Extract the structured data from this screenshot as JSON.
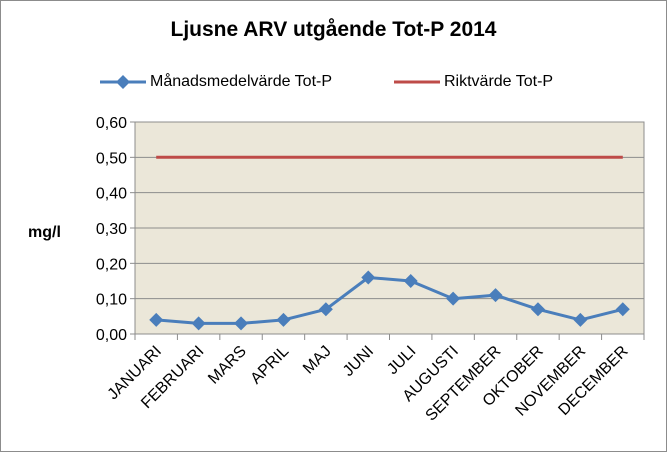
{
  "chart_data": {
    "type": "line",
    "title": "Ljusne ARV utgående Tot-P 2014",
    "ylabel": "mg/l",
    "xlabel": "",
    "categories": [
      "JANUARI",
      "FEBRUARI",
      "MARS",
      "APRIL",
      "MAJ",
      "JUNI",
      "JULI",
      "AUGUSTI",
      "SEPTEMBER",
      "OKTOBER",
      "NOVEMBER",
      "DECEMBER"
    ],
    "yticks": [
      "0,00",
      "0,10",
      "0,20",
      "0,30",
      "0,40",
      "0,50",
      "0,60"
    ],
    "ylim": [
      0,
      0.6
    ],
    "grid": true,
    "legend_position": "top",
    "series": [
      {
        "name": "Månadsmedelvärde Tot-P",
        "color": "#4a7ebb",
        "marker": "diamond",
        "values": [
          0.04,
          0.03,
          0.03,
          0.04,
          0.07,
          0.16,
          0.15,
          0.1,
          0.11,
          0.07,
          0.04,
          0.07
        ]
      },
      {
        "name": "Riktvärde Tot-P",
        "color": "#be4b48",
        "marker": "none",
        "values": [
          0.5,
          0.5,
          0.5,
          0.5,
          0.5,
          0.5,
          0.5,
          0.5,
          0.5,
          0.5,
          0.5,
          0.5
        ]
      }
    ],
    "plot_background": "#ebe7d9"
  }
}
